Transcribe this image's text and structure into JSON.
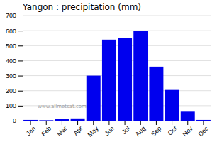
{
  "chart_data": {
    "type": "bar",
    "title": "Yangon : precipitation (mm)",
    "categories": [
      "Jan",
      "Feb",
      "Mar",
      "Apr",
      "May",
      "Jun",
      "Jul",
      "Aug",
      "Sep",
      "Oct",
      "Nov",
      "Dec"
    ],
    "values": [
      5,
      3,
      10,
      15,
      300,
      540,
      550,
      600,
      360,
      205,
      60,
      5
    ],
    "color": "#0000EE",
    "ylim": [
      0,
      700
    ],
    "yticks": [
      0,
      100,
      200,
      300,
      400,
      500,
      600,
      700
    ],
    "grid": true,
    "annotations": [
      "www.allmetsat.com"
    ]
  }
}
